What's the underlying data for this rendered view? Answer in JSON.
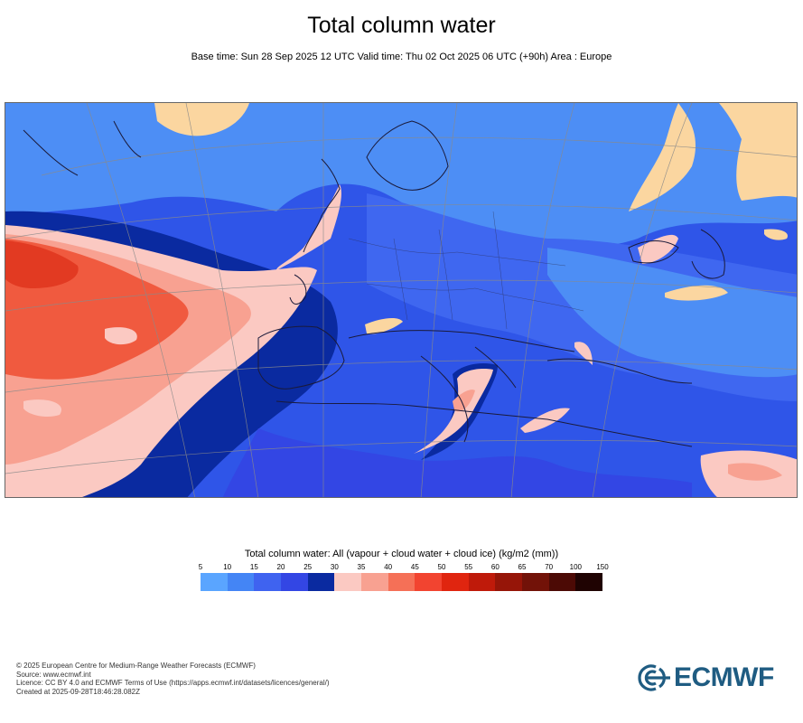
{
  "header": {
    "title": "Total column water",
    "subtitle": "Base time: Sun 28 Sep 2025 12 UTC Valid time: Thu 02 Oct 2025 06 UTC (+90h) Area : Europe"
  },
  "legend": {
    "title": "Total column water: All (vapour + cloud water + cloud ice) (kg/m2 (mm))",
    "ticks": [
      "5",
      "10",
      "15",
      "20",
      "25",
      "30",
      "35",
      "40",
      "45",
      "50",
      "55",
      "60",
      "65",
      "70",
      "100",
      "150"
    ],
    "colors": [
      "#5aa5ff",
      "#4485f5",
      "#3f63f0",
      "#3346e4",
      "#0a2aa0",
      "#fbc9c2",
      "#f8a191",
      "#f57057",
      "#f24430",
      "#e0250f",
      "#bf1a0a",
      "#961508",
      "#721208",
      "#4c0a05",
      "#1f0302"
    ]
  },
  "map": {
    "area": "Europe",
    "colors": {
      "ocean_base": "#2f55e8",
      "land_dry": "#4d8ef5",
      "land_mid": "#3f67f0",
      "deep": "#0a2aa0",
      "pink": "#fbc9c2",
      "salmon": "#f8a191",
      "red": "#f05a3f",
      "dark_red": "#e23a22",
      "very_dry": "#fbd6a0",
      "coast": "#1a1a3a",
      "grid": "#8a8a8a"
    }
  },
  "footer": {
    "lines": [
      "© 2025 European Centre for Medium-Range Weather Forecasts (ECMWF)",
      "Source: www.ecmwf.int",
      "Licence: CC BY 4.0 and ECMWF Terms of Use (https://apps.ecmwf.int/datasets/licences/general/)",
      "Created at 2025-09-28T18:46:28.082Z"
    ]
  },
  "logo": {
    "text": "ECMWF",
    "color": "#1f5c82"
  }
}
